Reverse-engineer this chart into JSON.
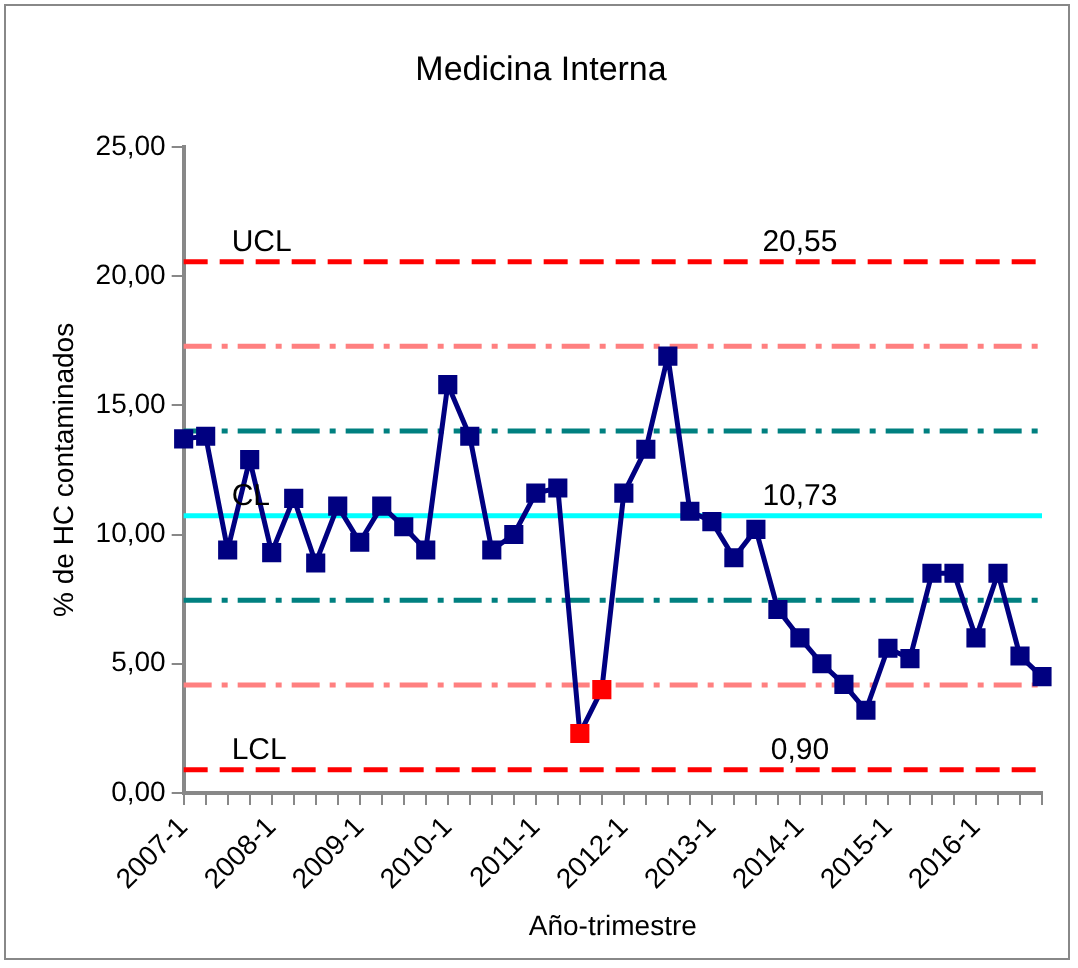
{
  "chart_data": {
    "type": "line",
    "title": "Medicina Interna",
    "xlabel": "Año-trimestre",
    "ylabel": "% de HC contaminados",
    "categories": [
      "2007-1",
      null,
      null,
      null,
      "2008-1",
      null,
      null,
      null,
      "2009-1",
      null,
      null,
      null,
      "2010-1",
      null,
      null,
      null,
      "2011-1",
      null,
      null,
      null,
      "2012-1",
      null,
      null,
      null,
      "2013-1",
      null,
      null,
      null,
      "2014-1",
      null,
      null,
      null,
      "2015-1",
      null,
      null,
      null,
      "2016-1",
      null,
      null,
      null
    ],
    "series": [
      {
        "color": "#000080",
        "colors": [
          "#000080",
          "#000080",
          "#000080",
          "#000080",
          "#000080",
          "#000080",
          "#000080",
          "#000080",
          "#000080",
          "#000080",
          "#000080",
          "#000080",
          "#000080",
          "#000080",
          "#000080",
          "#000080",
          "#000080",
          "#000080",
          "#ff0000",
          "#ff0000",
          "#000080",
          "#000080",
          "#000080",
          "#000080",
          "#000080",
          "#000080",
          "#000080",
          "#000080",
          "#000080",
          "#000080",
          "#000080",
          "#000080",
          "#000080",
          "#000080",
          "#000080",
          "#000080",
          "#000080",
          "#000080",
          "#000080",
          "#000080"
        ],
        "values": [
          13.7,
          13.8,
          9.4,
          12.9,
          9.3,
          11.4,
          8.9,
          11.1,
          9.7,
          11.1,
          10.3,
          9.4,
          15.8,
          13.8,
          9.4,
          10.0,
          11.6,
          11.8,
          2.3,
          4.0,
          11.6,
          13.3,
          16.9,
          10.9,
          10.5,
          9.1,
          10.2,
          7.1,
          6.0,
          5.0,
          4.2,
          3.2,
          5.6,
          5.2,
          8.5,
          8.5,
          6.0,
          8.5,
          5.3,
          4.5
        ]
      }
    ],
    "ylim": [
      0,
      25
    ],
    "yticks": [
      {
        "value": 0,
        "label": "0,00"
      },
      {
        "value": 5,
        "label": "5,00"
      },
      {
        "value": 10,
        "label": "10,00"
      },
      {
        "value": 15,
        "label": "15,00"
      },
      {
        "value": 20,
        "label": "20,00"
      },
      {
        "value": 25,
        "label": "25,00"
      }
    ],
    "ref_lines": [
      {
        "axis": "y",
        "value": 20.55,
        "label": "UCL",
        "color": "#ff0000",
        "line_style": "dashed"
      },
      {
        "axis": "y",
        "value": 17.28,
        "label": null,
        "color": "#ff8080",
        "line_style": "dashdot"
      },
      {
        "axis": "y",
        "value": 14.0,
        "label": null,
        "color": "#008080",
        "line_style": "dashdot"
      },
      {
        "axis": "y",
        "value": 10.73,
        "label": "CL",
        "color": "#00ffff",
        "line_style": "solid"
      },
      {
        "axis": "y",
        "value": 7.46,
        "label": null,
        "color": "#008080",
        "line_style": "dashdot"
      },
      {
        "axis": "y",
        "value": 4.18,
        "label": null,
        "color": "#ff8080",
        "line_style": "dashdot"
      },
      {
        "axis": "y",
        "value": 0.9,
        "label": "LCL",
        "color": "#ff0000",
        "line_style": "dashed"
      }
    ],
    "annotations": [
      {
        "text": "20,55",
        "x": "2014-1",
        "y": 20.55
      },
      {
        "text": "10,73",
        "x": "2014-1",
        "y": 10.73
      },
      {
        "text": "0,90",
        "x": "2014-1",
        "y": 0.9
      }
    ],
    "marker": "square",
    "line_style": "solid",
    "grid": false,
    "legend": false
  }
}
